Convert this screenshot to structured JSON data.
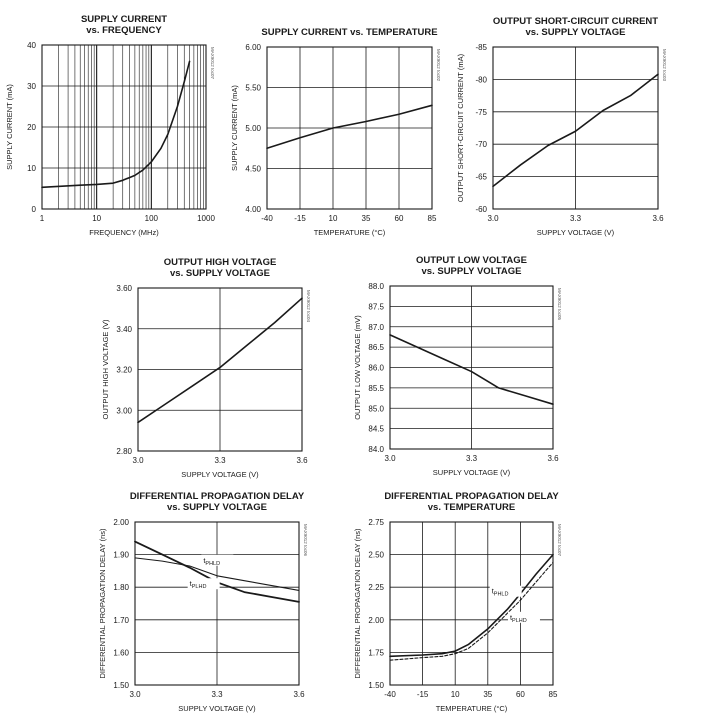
{
  "chart_data": [
    {
      "id": "c1",
      "type": "line",
      "title": [
        "SUPPLY CURRENT",
        "vs. FREQUENCY"
      ],
      "code": "MAX9012 toc07",
      "xlabel": "FREQUENCY (MHz)",
      "ylabel": "SUPPLY CURRENT (mA)",
      "xscale": "log",
      "xlim": [
        1,
        1000
      ],
      "ylim": [
        0,
        40
      ],
      "xticks": [
        1,
        10,
        100,
        1000
      ],
      "xticklabels": [
        "1",
        "10",
        "100",
        "1000"
      ],
      "yticks": [
        0,
        10,
        20,
        30,
        40
      ],
      "yticklabels": [
        "0",
        "10",
        "20",
        "30",
        "40"
      ],
      "grid": true,
      "series": [
        {
          "width": 1.6,
          "dash": "",
          "points": [
            [
              1,
              5.3
            ],
            [
              5,
              5.8
            ],
            [
              10,
              6.0
            ],
            [
              20,
              6.3
            ],
            [
              30,
              7.0
            ],
            [
              50,
              8.2
            ],
            [
              70,
              9.5
            ],
            [
              100,
              11.5
            ],
            [
              150,
              14.8
            ],
            [
              200,
              18.2
            ],
            [
              300,
              25.0
            ],
            [
              400,
              31.0
            ],
            [
              500,
              36.0
            ]
          ]
        }
      ],
      "annotations": []
    },
    {
      "id": "c2",
      "type": "line",
      "title": [
        "SUPPLY CURRENT vs. TEMPERATURE"
      ],
      "code": "MAX9012 toc02",
      "xlabel": "TEMPERATURE (°C)",
      "ylabel": "SUPPLY CURRENT (mA)",
      "xscale": "linear",
      "xlim": [
        -40,
        85
      ],
      "ylim": [
        4.0,
        6.0
      ],
      "xticks": [
        -40,
        -15,
        10,
        35,
        60,
        85
      ],
      "xticklabels": [
        "-40",
        "-15",
        "10",
        "35",
        "60",
        "85"
      ],
      "yticks": [
        4.0,
        4.5,
        5.0,
        5.5,
        6.0
      ],
      "yticklabels": [
        "4.00",
        "4.50",
        "5.00",
        "5.50",
        "6.00"
      ],
      "grid": true,
      "series": [
        {
          "width": 1.6,
          "dash": "",
          "points": [
            [
              -40,
              4.75
            ],
            [
              -15,
              4.88
            ],
            [
              10,
              5.0
            ],
            [
              35,
              5.08
            ],
            [
              60,
              5.17
            ],
            [
              85,
              5.28
            ]
          ]
        }
      ],
      "annotations": []
    },
    {
      "id": "c3",
      "type": "line",
      "title": [
        "OUTPUT SHORT-CIRCUIT CURRENT",
        "vs. SUPPLY VOLTAGE"
      ],
      "code": "MAX9012 toc03",
      "xlabel": "SUPPLY VOLTAGE (V)",
      "ylabel": "OUTPUT SHORT-CIRCUIT CURRENT (mA)",
      "xscale": "linear",
      "xlim": [
        3.0,
        3.6
      ],
      "ylim": [
        -60,
        -85
      ],
      "xticks": [
        3.0,
        3.3,
        3.6
      ],
      "xticklabels": [
        "3.0",
        "3.3",
        "3.6"
      ],
      "yticks": [
        -60,
        -65,
        -70,
        -75,
        -80,
        -85
      ],
      "yticklabels": [
        "-60",
        "-65",
        "-70",
        "-75",
        "-80",
        "-85"
      ],
      "grid": true,
      "series": [
        {
          "width": 1.6,
          "dash": "",
          "points": [
            [
              3.0,
              -63.5
            ],
            [
              3.1,
              -66.8
            ],
            [
              3.2,
              -69.8
            ],
            [
              3.3,
              -72.0
            ],
            [
              3.4,
              -75.2
            ],
            [
              3.5,
              -77.5
            ],
            [
              3.6,
              -80.8
            ]
          ]
        }
      ],
      "annotations": []
    },
    {
      "id": "c4",
      "type": "line",
      "title": [
        "OUTPUT HIGH VOLTAGE",
        "vs. SUPPLY VOLTAGE"
      ],
      "code": "MAX9012 toc04",
      "xlabel": "SUPPLY VOLTAGE (V)",
      "ylabel": "OUTPUT HIGH VOLTAGE (V)",
      "xscale": "linear",
      "xlim": [
        3.0,
        3.6
      ],
      "ylim": [
        2.8,
        3.6
      ],
      "xticks": [
        3.0,
        3.3,
        3.6
      ],
      "xticklabels": [
        "3.0",
        "3.3",
        "3.6"
      ],
      "yticks": [
        2.8,
        3.0,
        3.2,
        3.4,
        3.6
      ],
      "yticklabels": [
        "2.80",
        "3.00",
        "3.20",
        "3.40",
        "3.60"
      ],
      "grid": true,
      "series": [
        {
          "width": 1.6,
          "dash": "",
          "points": [
            [
              3.0,
              2.94
            ],
            [
              3.1,
              3.03
            ],
            [
              3.2,
              3.12
            ],
            [
              3.3,
              3.21
            ],
            [
              3.4,
              3.32
            ],
            [
              3.5,
              3.43
            ],
            [
              3.6,
              3.55
            ]
          ]
        }
      ],
      "annotations": []
    },
    {
      "id": "c5",
      "type": "line",
      "title": [
        "OUTPUT LOW VOLTAGE",
        "vs. SUPPLY VOLTAGE"
      ],
      "code": "MAX9012 toc05",
      "xlabel": "SUPPLY VOLTAGE (V)",
      "ylabel": "OUTPUT LOW VOLTAGE (mV)",
      "xscale": "linear",
      "xlim": [
        3.0,
        3.6
      ],
      "ylim": [
        84.0,
        88.0
      ],
      "xticks": [
        3.0,
        3.3,
        3.6
      ],
      "xticklabels": [
        "3.0",
        "3.3",
        "3.6"
      ],
      "yticks": [
        84.0,
        84.5,
        85.0,
        85.5,
        86.0,
        86.5,
        87.0,
        87.5,
        88.0
      ],
      "yticklabels": [
        "84.0",
        "84.5",
        "85.0",
        "85.5",
        "86.0",
        "86.5",
        "87.0",
        "87.5",
        "88.0"
      ],
      "grid": true,
      "series": [
        {
          "width": 1.6,
          "dash": "",
          "points": [
            [
              3.0,
              86.8
            ],
            [
              3.1,
              86.5
            ],
            [
              3.2,
              86.2
            ],
            [
              3.3,
              85.9
            ],
            [
              3.4,
              85.5
            ],
            [
              3.5,
              85.3
            ],
            [
              3.6,
              85.1
            ]
          ]
        }
      ],
      "annotations": []
    },
    {
      "id": "c6",
      "type": "line",
      "title": [
        "DIFFERENTIAL PROPAGATION DELAY",
        "vs. SUPPLY VOLTAGE"
      ],
      "code": "MAX9012 toc06",
      "xlabel": "SUPPLY VOLTAGE (V)",
      "ylabel": "DIFFERENTIAL PROPAGATION DELAY (ns)",
      "xscale": "linear",
      "xlim": [
        3.0,
        3.6
      ],
      "ylim": [
        1.5,
        2.0
      ],
      "xticks": [
        3.0,
        3.3,
        3.6
      ],
      "xticklabels": [
        "3.0",
        "3.3",
        "3.6"
      ],
      "yticks": [
        1.5,
        1.6,
        1.7,
        1.8,
        1.9,
        2.0
      ],
      "yticklabels": [
        "1.50",
        "1.60",
        "1.70",
        "1.80",
        "1.90",
        "2.00"
      ],
      "grid": true,
      "series": [
        {
          "width": 1.1,
          "dash": "",
          "points": [
            [
              3.0,
              1.89
            ],
            [
              3.1,
              1.88
            ],
            [
              3.2,
              1.865
            ],
            [
              3.3,
              1.835
            ],
            [
              3.4,
              1.82
            ],
            [
              3.5,
              1.805
            ],
            [
              3.6,
              1.79
            ]
          ]
        },
        {
          "width": 1.8,
          "dash": "",
          "points": [
            [
              3.0,
              1.94
            ],
            [
              3.1,
              1.9
            ],
            [
              3.2,
              1.86
            ],
            [
              3.3,
              1.815
            ],
            [
              3.4,
              1.785
            ],
            [
              3.5,
              1.77
            ],
            [
              3.6,
              1.755
            ]
          ]
        }
      ],
      "annotations": [
        {
          "main": "t",
          "sub": "PHLD",
          "x": 3.25,
          "y": 1.875
        },
        {
          "main": "t",
          "sub": "PLHD",
          "x": 3.2,
          "y": 1.803
        }
      ]
    },
    {
      "id": "c7",
      "type": "line",
      "title": [
        "DIFFERENTIAL PROPAGATION DELAY",
        "vs. TEMPERATURE"
      ],
      "code": "MAX9012 toc07",
      "xlabel": "TEMPERATURE (°C)",
      "ylabel": "DIFFERENTIAL PROPAGATION DELAY (ns)",
      "xscale": "linear",
      "xlim": [
        -40,
        85
      ],
      "ylim": [
        1.5,
        2.75
      ],
      "xticks": [
        -40,
        -15,
        10,
        35,
        60,
        85
      ],
      "xticklabels": [
        "-40",
        "-15",
        "10",
        "35",
        "60",
        "85"
      ],
      "yticks": [
        1.5,
        1.75,
        2.0,
        2.25,
        2.5,
        2.75
      ],
      "yticklabels": [
        "1.50",
        "1.75",
        "2.00",
        "2.25",
        "2.50",
        "2.75"
      ],
      "grid": true,
      "series": [
        {
          "width": 1.6,
          "dash": "",
          "points": [
            [
              -40,
              1.72
            ],
            [
              -15,
              1.73
            ],
            [
              0,
              1.74
            ],
            [
              10,
              1.76
            ],
            [
              20,
              1.81
            ],
            [
              35,
              1.93
            ],
            [
              50,
              2.08
            ],
            [
              60,
              2.2
            ],
            [
              72,
              2.35
            ],
            [
              85,
              2.5
            ]
          ]
        },
        {
          "width": 1.1,
          "dash": "3,2",
          "points": [
            [
              -40,
              1.69
            ],
            [
              -15,
              1.71
            ],
            [
              0,
              1.72
            ],
            [
              10,
              1.74
            ],
            [
              20,
              1.78
            ],
            [
              35,
              1.9
            ],
            [
              50,
              2.05
            ],
            [
              60,
              2.15
            ],
            [
              72,
              2.29
            ],
            [
              85,
              2.44
            ]
          ]
        }
      ],
      "annotations": [
        {
          "main": "t",
          "sub": "PHLD",
          "x": 38,
          "y": 2.2
        },
        {
          "main": "t",
          "sub": "PLHD",
          "x": 52,
          "y": 2.0
        }
      ]
    }
  ]
}
